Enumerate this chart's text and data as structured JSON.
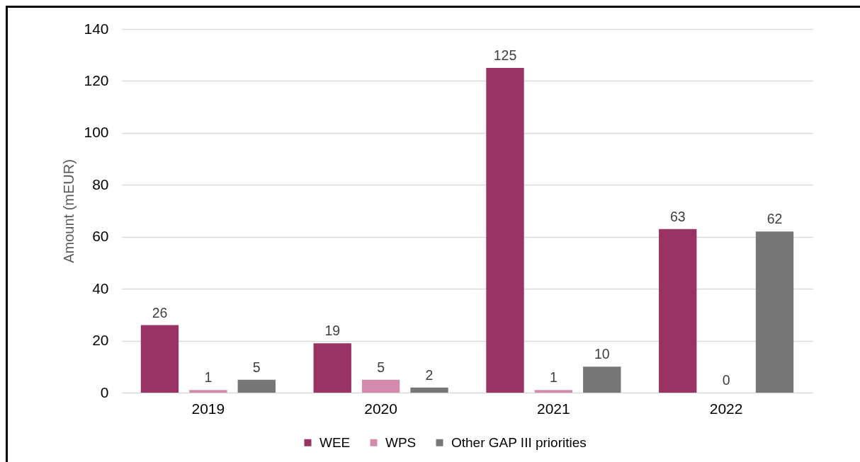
{
  "chart_data": {
    "type": "bar",
    "categories": [
      "2019",
      "2020",
      "2021",
      "2022"
    ],
    "series": [
      {
        "name": "WEE",
        "color": "#983363",
        "values": [
          26,
          19,
          125,
          63
        ]
      },
      {
        "name": "WPS",
        "color": "#d48aac",
        "values": [
          1,
          5,
          1,
          0
        ]
      },
      {
        "name": "Other GAP III priorities",
        "color": "#767676",
        "values": [
          5,
          2,
          10,
          62
        ]
      }
    ],
    "ylabel": "Amount (mEUR)",
    "ylim": [
      0,
      140
    ],
    "yticks": [
      0,
      20,
      40,
      60,
      80,
      100,
      120,
      140
    ],
    "grid": "y",
    "legend": "bottom",
    "data_labels": true
  }
}
